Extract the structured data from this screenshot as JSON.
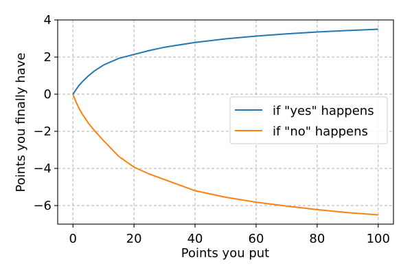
{
  "chart_data": {
    "type": "line",
    "title": "",
    "xlabel": "Points you put",
    "ylabel": "Points you finally have",
    "xlim": [
      -5,
      105
    ],
    "ylim": [
      -7,
      4
    ],
    "x_ticks": [
      0,
      20,
      40,
      60,
      80,
      100
    ],
    "y_ticks": [
      -6,
      -4,
      -2,
      0,
      2,
      4
    ],
    "x_tick_labels": [
      "0",
      "20",
      "40",
      "60",
      "80",
      "100"
    ],
    "y_tick_labels": [
      "−6",
      "−4",
      "−2",
      "0",
      "2",
      "4"
    ],
    "grid": true,
    "legend_position": "right",
    "series": [
      {
        "name": "if \"yes\" happens",
        "color": "#1f77b4",
        "x": [
          0,
          1,
          2,
          3,
          5,
          7,
          10,
          15,
          20,
          25,
          30,
          40,
          50,
          60,
          70,
          80,
          90,
          100
        ],
        "y": [
          0,
          0.25,
          0.47,
          0.66,
          0.98,
          1.25,
          1.57,
          1.93,
          2.14,
          2.35,
          2.53,
          2.79,
          2.98,
          3.13,
          3.25,
          3.35,
          3.43,
          3.5
        ]
      },
      {
        "name": "if \"no\" happens",
        "color": "#ff7f0e",
        "x": [
          0,
          1,
          2,
          3,
          5,
          7,
          10,
          15,
          20,
          25,
          30,
          40,
          50,
          60,
          70,
          80,
          90,
          100
        ],
        "y": [
          0,
          -0.42,
          -0.76,
          -1.06,
          -1.55,
          -1.95,
          -2.5,
          -3.35,
          -3.93,
          -4.3,
          -4.6,
          -5.2,
          -5.55,
          -5.82,
          -6.03,
          -6.22,
          -6.38,
          -6.5
        ]
      }
    ]
  }
}
